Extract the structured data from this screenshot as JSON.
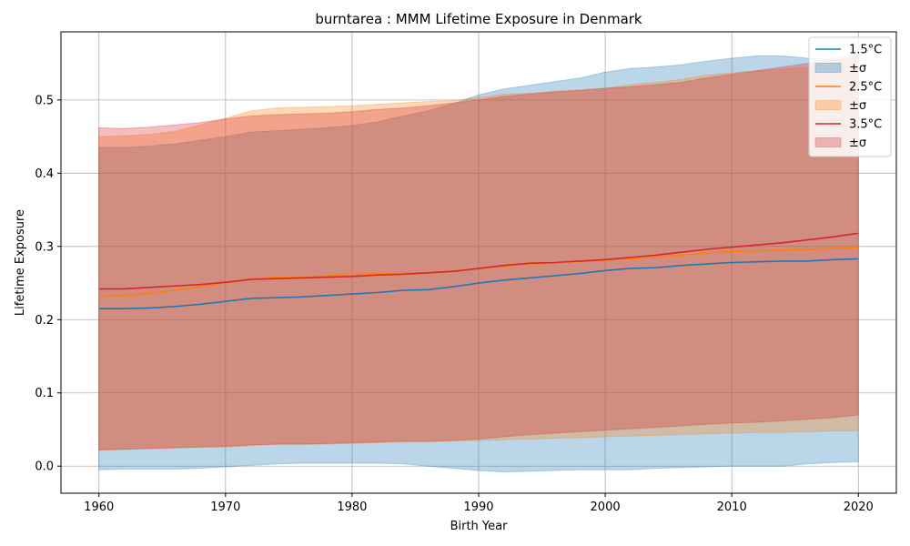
{
  "chart_data": {
    "type": "area",
    "title": "burntarea : MMM Lifetime Exposure in Denmark",
    "xlabel": "Birth Year",
    "ylabel": "Lifetime Exposure",
    "xlim": [
      1957,
      2023
    ],
    "ylim": [
      -0.037,
      0.593
    ],
    "x_ticks": [
      1960,
      1970,
      1980,
      1990,
      2000,
      2010,
      2020
    ],
    "y_ticks": [
      0.0,
      0.1,
      0.2,
      0.3,
      0.4,
      0.5
    ],
    "y_tick_labels": [
      "0.0",
      "0.1",
      "0.2",
      "0.3",
      "0.4",
      "0.5"
    ],
    "grid": true,
    "legend_position": "top-right",
    "x": [
      1960,
      1962,
      1964,
      1966,
      1968,
      1970,
      1972,
      1974,
      1976,
      1978,
      1980,
      1982,
      1984,
      1986,
      1988,
      1990,
      1992,
      1994,
      1996,
      1998,
      2000,
      2002,
      2004,
      2006,
      2008,
      2010,
      2012,
      2014,
      2016,
      2018,
      2020
    ],
    "series": [
      {
        "name": "1.5°C",
        "band_label": "±σ",
        "color": "#1f77b4",
        "values": [
          0.215,
          0.215,
          0.216,
          0.218,
          0.221,
          0.225,
          0.229,
          0.23,
          0.231,
          0.233,
          0.235,
          0.237,
          0.24,
          0.241,
          0.245,
          0.25,
          0.254,
          0.257,
          0.26,
          0.263,
          0.267,
          0.27,
          0.271,
          0.274,
          0.276,
          0.278,
          0.279,
          0.28,
          0.28,
          0.282,
          0.283
        ],
        "lower": [
          -0.005,
          -0.004,
          -0.004,
          -0.004,
          -0.003,
          -0.001,
          0.001,
          0.003,
          0.004,
          0.004,
          0.004,
          0.004,
          0.003,
          0.0,
          -0.003,
          -0.006,
          -0.008,
          -0.007,
          -0.006,
          -0.005,
          -0.005,
          -0.005,
          -0.003,
          -0.002,
          -0.001,
          0.0,
          0.0,
          0.0,
          0.003,
          0.005,
          0.006
        ],
        "upper": [
          0.435,
          0.435,
          0.437,
          0.44,
          0.445,
          0.45,
          0.456,
          0.458,
          0.46,
          0.462,
          0.465,
          0.47,
          0.478,
          0.485,
          0.495,
          0.507,
          0.515,
          0.52,
          0.525,
          0.53,
          0.538,
          0.543,
          0.545,
          0.548,
          0.553,
          0.557,
          0.56,
          0.56,
          0.557,
          0.555,
          0.555
        ]
      },
      {
        "name": "2.5°C",
        "band_label": "±σ",
        "color": "#ff7f0e",
        "values": [
          0.232,
          0.233,
          0.236,
          0.24,
          0.245,
          0.25,
          0.255,
          0.258,
          0.258,
          0.26,
          0.262,
          0.263,
          0.264,
          0.264,
          0.266,
          0.27,
          0.273,
          0.276,
          0.278,
          0.279,
          0.281,
          0.283,
          0.285,
          0.288,
          0.291,
          0.293,
          0.294,
          0.295,
          0.296,
          0.297,
          0.298
        ],
        "lower": [
          0.022,
          0.023,
          0.024,
          0.025,
          0.026,
          0.026,
          0.028,
          0.03,
          0.03,
          0.03,
          0.031,
          0.032,
          0.033,
          0.033,
          0.034,
          0.035,
          0.036,
          0.037,
          0.038,
          0.039,
          0.04,
          0.041,
          0.042,
          0.043,
          0.044,
          0.045,
          0.046,
          0.046,
          0.047,
          0.048,
          0.048
        ],
        "upper": [
          0.45,
          0.451,
          0.453,
          0.457,
          0.466,
          0.475,
          0.485,
          0.489,
          0.49,
          0.491,
          0.492,
          0.494,
          0.496,
          0.498,
          0.499,
          0.503,
          0.508,
          0.509,
          0.512,
          0.514,
          0.516,
          0.521,
          0.524,
          0.528,
          0.534,
          0.537,
          0.54,
          0.542,
          0.545,
          0.553,
          0.56
        ]
      },
      {
        "name": "3.5°C",
        "band_label": "±σ",
        "color": "#d62728",
        "values": [
          0.242,
          0.242,
          0.244,
          0.246,
          0.248,
          0.251,
          0.255,
          0.256,
          0.257,
          0.258,
          0.259,
          0.261,
          0.262,
          0.264,
          0.266,
          0.27,
          0.274,
          0.277,
          0.278,
          0.28,
          0.282,
          0.285,
          0.288,
          0.292,
          0.296,
          0.299,
          0.302,
          0.305,
          0.309,
          0.313,
          0.318
        ],
        "lower": [
          0.022,
          0.023,
          0.024,
          0.025,
          0.026,
          0.027,
          0.029,
          0.03,
          0.03,
          0.031,
          0.032,
          0.033,
          0.034,
          0.034,
          0.035,
          0.037,
          0.04,
          0.043,
          0.045,
          0.047,
          0.049,
          0.051,
          0.053,
          0.055,
          0.057,
          0.059,
          0.06,
          0.062,
          0.064,
          0.066,
          0.07
        ],
        "upper": [
          0.462,
          0.461,
          0.463,
          0.466,
          0.469,
          0.474,
          0.478,
          0.48,
          0.481,
          0.482,
          0.484,
          0.487,
          0.489,
          0.492,
          0.496,
          0.5,
          0.505,
          0.508,
          0.511,
          0.513,
          0.516,
          0.518,
          0.521,
          0.524,
          0.53,
          0.535,
          0.54,
          0.545,
          0.55,
          0.557,
          0.563
        ]
      }
    ]
  }
}
